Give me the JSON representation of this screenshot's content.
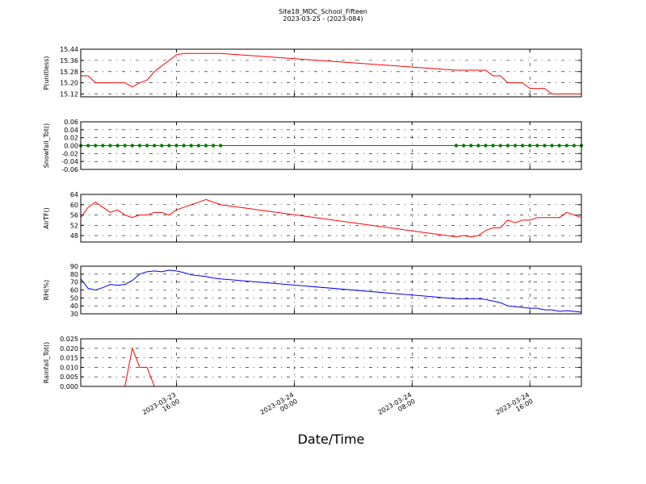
{
  "chart_data": [
    {
      "type": "line",
      "title": "Site18_MDC_School_Fifteen",
      "subtitle": "2023-03-25 - (2023-084)",
      "y_label": "P(unitless)",
      "color": "#ff0000",
      "grid": true,
      "xlim": [
        "2023-03-23 09:30",
        "2023-03-24 19:30"
      ],
      "ylim": [
        15.1,
        15.44
      ],
      "yticks": [
        15.12,
        {
          "value": 15.2,
          "label": "15.20"
        },
        15.28,
        15.36,
        15.44
      ],
      "x": [
        "2023-03-23 09:30",
        "2023-03-23 10:00",
        "2023-03-23 10:30",
        "2023-03-23 11:00",
        "2023-03-23 11:30",
        "2023-03-23 12:00",
        "2023-03-23 12:30",
        "2023-03-23 13:00",
        "2023-03-23 13:30",
        "2023-03-23 14:00",
        "2023-03-23 14:30",
        "2023-03-23 15:00",
        "2023-03-23 15:30",
        "2023-03-23 16:00",
        "2023-03-23 16:30",
        "2023-03-23 17:00",
        "2023-03-23 17:30",
        "2023-03-23 18:00",
        "2023-03-23 18:30",
        "2023-03-23 19:00",
        "2023-03-24 11:00",
        "2023-03-24 11:30",
        "2023-03-24 12:00",
        "2023-03-24 12:30",
        "2023-03-24 13:00",
        "2023-03-24 13:30",
        "2023-03-24 14:00",
        "2023-03-24 14:30",
        "2023-03-24 15:00",
        "2023-03-24 15:30",
        "2023-03-24 16:00",
        "2023-03-24 16:30",
        "2023-03-24 17:00",
        "2023-03-24 17:30",
        "2023-03-24 18:00",
        "2023-03-24 18:30",
        "2023-03-24 19:00",
        "2023-03-24 19:30"
      ],
      "values": [
        15.25,
        15.25,
        15.2,
        15.2,
        15.2,
        15.2,
        15.2,
        15.17,
        15.2,
        15.22,
        15.28,
        15.32,
        15.36,
        15.4,
        15.41,
        15.41,
        15.41,
        15.41,
        15.41,
        15.41,
        15.29,
        15.29,
        15.29,
        15.29,
        15.29,
        15.25,
        15.25,
        15.2,
        15.2,
        15.2,
        15.16,
        15.16,
        15.16,
        15.12,
        15.12,
        15.12,
        15.12,
        15.12
      ]
    },
    {
      "type": "line",
      "y_label": "Snowfall_Tot()",
      "color": "#008000",
      "marker": true,
      "grid": true,
      "xlim": [
        "2023-03-23 09:30",
        "2023-03-24 19:30"
      ],
      "ylim": [
        -0.06,
        0.06
      ],
      "yticks": [
        -0.06,
        -0.04,
        -0.02,
        {
          "value": 0,
          "label": "0.00"
        },
        0.02,
        0.04,
        0.06
      ],
      "x": [
        "2023-03-23 09:30",
        "2023-03-23 10:00",
        "2023-03-23 10:30",
        "2023-03-23 11:00",
        "2023-03-23 11:30",
        "2023-03-23 12:00",
        "2023-03-23 12:30",
        "2023-03-23 13:00",
        "2023-03-23 13:30",
        "2023-03-23 14:00",
        "2023-03-23 14:30",
        "2023-03-23 15:00",
        "2023-03-23 15:30",
        "2023-03-23 16:00",
        "2023-03-23 16:30",
        "2023-03-23 17:00",
        "2023-03-23 17:30",
        "2023-03-23 18:00",
        "2023-03-23 18:30",
        "2023-03-23 19:00",
        "2023-03-24 11:00",
        "2023-03-24 11:30",
        "2023-03-24 12:00",
        "2023-03-24 12:30",
        "2023-03-24 13:00",
        "2023-03-24 13:30",
        "2023-03-24 14:00",
        "2023-03-24 14:30",
        "2023-03-24 15:00",
        "2023-03-24 15:30",
        "2023-03-24 16:00",
        "2023-03-24 16:30",
        "2023-03-24 17:00",
        "2023-03-24 17:30",
        "2023-03-24 18:00",
        "2023-03-24 18:30",
        "2023-03-24 19:00",
        "2023-03-24 19:30"
      ],
      "values": [
        0,
        0,
        0,
        0,
        0,
        0,
        0,
        0,
        0,
        0,
        0,
        0,
        0,
        0,
        0,
        0,
        0,
        0,
        0,
        0,
        0,
        0,
        0,
        0,
        0,
        0,
        0,
        0,
        0,
        0,
        0,
        0,
        0,
        0,
        0,
        0,
        0,
        0
      ]
    },
    {
      "type": "line",
      "y_label": "AirTF()",
      "color": "#ff0000",
      "grid": true,
      "xlim": [
        "2023-03-23 09:30",
        "2023-03-24 19:30"
      ],
      "ylim": [
        45.5,
        64
      ],
      "yticks": [
        48,
        52,
        56,
        60,
        64
      ],
      "x": [
        "2023-03-23 09:30",
        "2023-03-23 10:00",
        "2023-03-23 10:30",
        "2023-03-23 11:00",
        "2023-03-23 11:30",
        "2023-03-23 12:00",
        "2023-03-23 12:30",
        "2023-03-23 13:00",
        "2023-03-23 13:30",
        "2023-03-23 14:00",
        "2023-03-23 14:30",
        "2023-03-23 15:00",
        "2023-03-23 15:30",
        "2023-03-23 16:00",
        "2023-03-23 16:30",
        "2023-03-23 17:00",
        "2023-03-23 17:30",
        "2023-03-23 18:00",
        "2023-03-23 18:30",
        "2023-03-23 19:00",
        "2023-03-24 11:00",
        "2023-03-24 11:30",
        "2023-03-24 12:00",
        "2023-03-24 12:30",
        "2023-03-24 13:00",
        "2023-03-24 13:30",
        "2023-03-24 14:00",
        "2023-03-24 14:30",
        "2023-03-24 15:00",
        "2023-03-24 15:30",
        "2023-03-24 16:00",
        "2023-03-24 16:30",
        "2023-03-24 17:00",
        "2023-03-24 17:30",
        "2023-03-24 18:00",
        "2023-03-24 18:30",
        "2023-03-24 19:00",
        "2023-03-24 19:30"
      ],
      "values": [
        55,
        59,
        61,
        59,
        57,
        58,
        56,
        55,
        56,
        56,
        57,
        57,
        56,
        58,
        59,
        60,
        61,
        62,
        61,
        60,
        47.5,
        48,
        47.5,
        48,
        50,
        51,
        51,
        54,
        53,
        54,
        54,
        55,
        55,
        55,
        55,
        57,
        56,
        55
      ]
    },
    {
      "type": "line",
      "y_label": "RH(%)",
      "color": "#0000ff",
      "grid": true,
      "xlim": [
        "2023-03-23 09:30",
        "2023-03-24 19:30"
      ],
      "ylim": [
        30,
        90
      ],
      "yticks": [
        30,
        40,
        50,
        60,
        70,
        80,
        90
      ],
      "x": [
        "2023-03-23 09:30",
        "2023-03-23 10:00",
        "2023-03-23 10:30",
        "2023-03-23 11:00",
        "2023-03-23 11:30",
        "2023-03-23 12:00",
        "2023-03-23 12:30",
        "2023-03-23 13:00",
        "2023-03-23 13:30",
        "2023-03-23 14:00",
        "2023-03-23 14:30",
        "2023-03-23 15:00",
        "2023-03-23 15:30",
        "2023-03-23 16:00",
        "2023-03-23 16:30",
        "2023-03-23 17:00",
        "2023-03-23 17:30",
        "2023-03-23 18:00",
        "2023-03-23 18:30",
        "2023-03-23 19:00",
        "2023-03-24 11:00",
        "2023-03-24 11:30",
        "2023-03-24 12:00",
        "2023-03-24 12:30",
        "2023-03-24 13:00",
        "2023-03-24 13:30",
        "2023-03-24 14:00",
        "2023-03-24 14:30",
        "2023-03-24 15:00",
        "2023-03-24 15:30",
        "2023-03-24 16:00",
        "2023-03-24 16:30",
        "2023-03-24 17:00",
        "2023-03-24 17:30",
        "2023-03-24 18:00",
        "2023-03-24 18:30",
        "2023-03-24 19:00",
        "2023-03-24 19:30"
      ],
      "values": [
        74,
        62,
        60,
        63,
        67,
        66,
        67,
        72,
        80,
        83,
        84,
        83,
        85,
        84,
        82,
        79,
        78,
        77,
        75,
        74,
        49,
        49,
        49,
        49,
        48,
        46,
        44,
        40,
        39,
        38,
        37,
        37,
        35,
        35,
        33,
        34,
        33,
        32
      ]
    },
    {
      "type": "line",
      "y_label": "Rainfall_Tot()",
      "x_label": "Date/Time",
      "color": "#ff0000",
      "grid": true,
      "xlim": [
        "2023-03-23 09:30",
        "2023-03-24 19:30"
      ],
      "ylim": [
        0,
        0.025
      ],
      "yticks": [
        {
          "value": 0,
          "label": "0.000"
        },
        0.005,
        {
          "value": 0.01,
          "label": "0.010"
        },
        0.015,
        {
          "value": 0.02,
          "label": "0.020"
        },
        0.025
      ],
      "xticks": [
        "2023-03-23 16:00",
        "2023-03-24 00:00",
        "2023-03-24 08:00",
        "2023-03-24 16:00"
      ],
      "x": [
        "2023-03-23 09:30",
        "2023-03-23 10:00",
        "2023-03-23 10:30",
        "2023-03-23 11:00",
        "2023-03-23 11:30",
        "2023-03-23 12:00",
        "2023-03-23 12:30",
        "2023-03-23 13:00",
        "2023-03-23 13:30",
        "2023-03-23 14:00",
        "2023-03-23 14:30",
        "2023-03-23 15:00",
        "2023-03-23 15:30",
        "2023-03-23 16:00",
        "2023-03-23 16:30",
        "2023-03-23 17:00",
        "2023-03-23 17:30",
        "2023-03-23 18:00",
        "2023-03-23 18:30",
        "2023-03-23 19:00",
        "2023-03-24 11:00",
        "2023-03-24 11:30",
        "2023-03-24 12:00",
        "2023-03-24 12:30",
        "2023-03-24 13:00",
        "2023-03-24 13:30",
        "2023-03-24 14:00",
        "2023-03-24 14:30",
        "2023-03-24 15:00",
        "2023-03-24 15:30",
        "2023-03-24 16:00",
        "2023-03-24 16:30",
        "2023-03-24 17:00",
        "2023-03-24 17:30",
        "2023-03-24 18:00",
        "2023-03-24 18:30",
        "2023-03-24 19:00",
        "2023-03-24 19:30"
      ],
      "values": [
        0,
        0,
        0,
        0,
        0,
        0,
        0,
        0.02,
        0.01,
        0.01,
        0,
        0,
        0,
        0,
        0,
        0,
        0,
        0,
        0,
        0,
        0,
        0,
        0,
        0,
        0,
        0,
        0,
        0,
        0,
        0,
        0,
        0,
        0,
        0,
        0,
        0,
        0,
        0
      ]
    }
  ]
}
